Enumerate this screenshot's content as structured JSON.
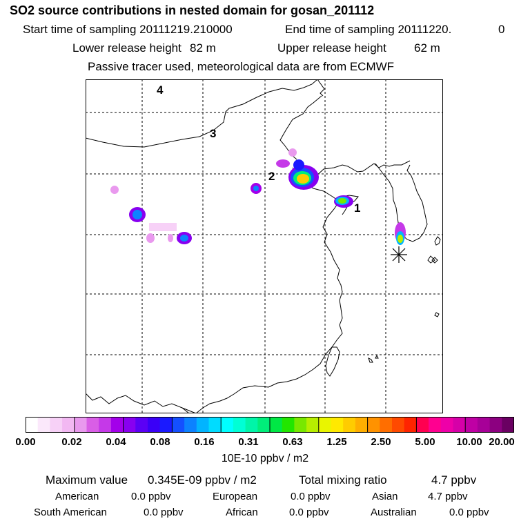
{
  "header": {
    "title": "SO2 source contributions in nested domain for gosan_201112",
    "start_label": "Start time of sampling 20111219.210000",
    "end_label": "End time of sampling 20111220.",
    "end_value": "0",
    "lower_label": "Lower release height",
    "lower_value": "82 m",
    "upper_label": "Upper release height",
    "upper_value": "62 m",
    "note": "Passive tracer used, meteorological data are from ECMWF"
  },
  "map": {
    "region_labels": [
      "1",
      "2",
      "3",
      "4"
    ],
    "receptor_marker": "asterisk-icon"
  },
  "colorbar": {
    "ticks": [
      "0.00",
      "0.02",
      "0.04",
      "0.08",
      "0.16",
      "0.31",
      "0.63",
      "1.25",
      "2.50",
      "5.00",
      "10.00",
      "20.00"
    ],
    "unit": "10E-10 ppbv / m2",
    "colors": [
      "#ffffff",
      "#fbe8fb",
      "#f7d1f7",
      "#f2b8f2",
      "#e999ee",
      "#d95ee6",
      "#c539e8",
      "#a300ea",
      "#8800f0",
      "#5b00f5",
      "#3a00f7",
      "#1a1aff",
      "#1450ff",
      "#0c82ff",
      "#02b4ff",
      "#00dcff",
      "#00ffff",
      "#00ffd5",
      "#00f5a8",
      "#00ee7a",
      "#00e845",
      "#22e600",
      "#78e800",
      "#b7ee00",
      "#e9f500",
      "#ffe900",
      "#ffcc00",
      "#ffae00",
      "#ff9200",
      "#ff6e00",
      "#ff4a00",
      "#ff2400",
      "#ff0050",
      "#ff0090",
      "#ee00a8",
      "#d600a8",
      "#bf00a4",
      "#a70098",
      "#8c0080",
      "#6a0062"
    ]
  },
  "stats": {
    "max_label": "Maximum value",
    "max_value": "0.345E-09 ppbv / m2",
    "total_label": "Total mixing ratio",
    "total_value": "4.7 ppbv",
    "regions": [
      {
        "name": "American",
        "value": "0.0 ppbv"
      },
      {
        "name": "European",
        "value": "0.0 ppbv"
      },
      {
        "name": "Asian",
        "value": "4.7 ppbv"
      },
      {
        "name": "South American",
        "value": "0.0 ppbv"
      },
      {
        "name": "African",
        "value": "0.0 ppbv"
      },
      {
        "name": "Australian",
        "value": "0.0 ppbv"
      }
    ]
  }
}
